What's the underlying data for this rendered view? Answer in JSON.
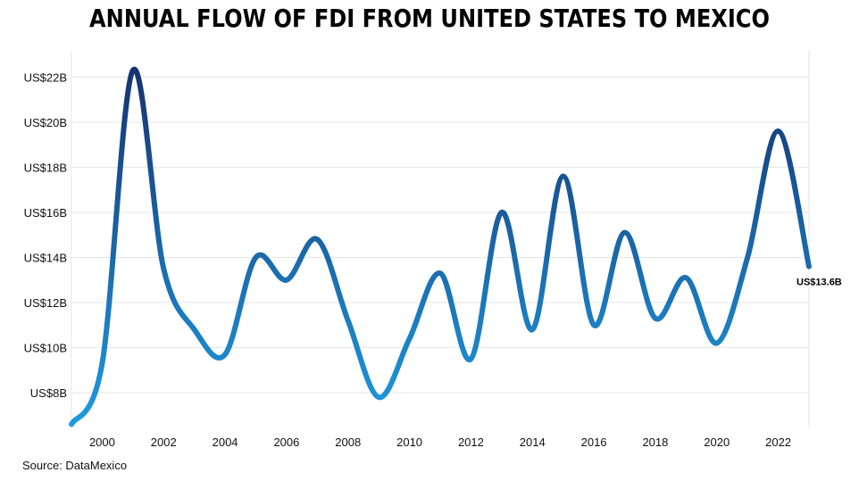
{
  "chart_data": {
    "type": "line",
    "title": "ANNUAL FLOW OF FDI FROM UNITED STATES TO MEXICO",
    "x": [
      1999,
      2000,
      2001,
      2002,
      2003,
      2004,
      2005,
      2006,
      2007,
      2008,
      2009,
      2010,
      2011,
      2012,
      2013,
      2014,
      2015,
      2016,
      2017,
      2018,
      2019,
      2020,
      2021,
      2022,
      2023
    ],
    "series": [
      {
        "values": [
          6.6,
          9.3,
          22.3,
          13.5,
          10.8,
          9.7,
          14.0,
          13.0,
          14.8,
          11.2,
          7.8,
          10.4,
          13.3,
          9.5,
          16.0,
          10.8,
          17.6,
          11.0,
          15.1,
          11.3,
          13.1,
          10.2,
          14.0,
          19.6,
          13.6
        ]
      }
    ],
    "ylim": [
      6.5,
      23.2
    ],
    "xlim": [
      1999,
      2023
    ],
    "yticks": [
      {
        "value": 8,
        "label": "US$8B"
      },
      {
        "value": 10,
        "label": "US$10B"
      },
      {
        "value": 12,
        "label": "US$12B"
      },
      {
        "value": 14,
        "label": "US$14B"
      },
      {
        "value": 16,
        "label": "US$16B"
      },
      {
        "value": 18,
        "label": "US$18B"
      },
      {
        "value": 20,
        "label": "US$20B"
      },
      {
        "value": 22,
        "label": "US$22B"
      }
    ],
    "xticks": [
      {
        "value": 2000,
        "label": "2000"
      },
      {
        "value": 2002,
        "label": "2002"
      },
      {
        "value": 2004,
        "label": "2004"
      },
      {
        "value": 2006,
        "label": "2006"
      },
      {
        "value": 2008,
        "label": "2008"
      },
      {
        "value": 2010,
        "label": "2010"
      },
      {
        "value": 2012,
        "label": "2012"
      },
      {
        "value": 2014,
        "label": "2014"
      },
      {
        "value": 2016,
        "label": "2016"
      },
      {
        "value": 2018,
        "label": "2018"
      },
      {
        "value": 2020,
        "label": "2020"
      },
      {
        "value": 2022,
        "label": "2022"
      }
    ],
    "end_label": "US$13.6B",
    "grid": true,
    "colors": {
      "line_low": "#1e9be0",
      "line_high": "#16306e",
      "grid": "#e6e6e6"
    }
  },
  "source": "Source: DataMexico"
}
